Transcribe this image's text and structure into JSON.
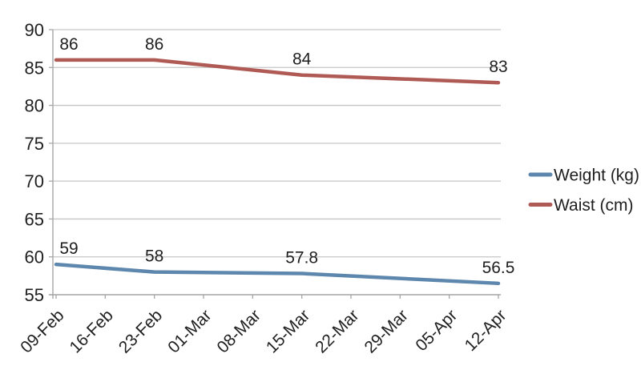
{
  "chart_data": {
    "type": "line",
    "title": "",
    "xlabel": "",
    "ylabel": "",
    "categories": [
      "09-Feb",
      "16-Feb",
      "23-Feb",
      "01-Mar",
      "08-Mar",
      "15-Mar",
      "22-Mar",
      "29-Mar",
      "05-Apr",
      "12-Apr"
    ],
    "ylim": [
      55,
      90
    ],
    "yticks": [
      90,
      85,
      80,
      75,
      70,
      65,
      60,
      55
    ],
    "grid": true,
    "legend_position": "right",
    "series": [
      {
        "name": "Weight (kg)",
        "color": "#5E87AE",
        "points": [
          {
            "category": "09-Feb",
            "value": 59,
            "label": "59"
          },
          {
            "category": "23-Feb",
            "value": 58,
            "label": "58"
          },
          {
            "category": "15-Mar",
            "value": 57.8,
            "label": "57.8"
          },
          {
            "category": "12-Apr",
            "value": 56.5,
            "label": "56.5"
          }
        ]
      },
      {
        "name": "Waist (cm)",
        "color": "#B05A56",
        "points": [
          {
            "category": "09-Feb",
            "value": 86,
            "label": "86"
          },
          {
            "category": "23-Feb",
            "value": 86,
            "label": "86"
          },
          {
            "category": "15-Mar",
            "value": 84,
            "label": "84"
          },
          {
            "category": "12-Apr",
            "value": 83,
            "label": "83"
          }
        ]
      }
    ],
    "colors": {
      "grid_line": "#C6C6C6",
      "axis_line": "#A6A6A6",
      "text": "#1F1F1F",
      "background": "#FFFFFF"
    }
  }
}
